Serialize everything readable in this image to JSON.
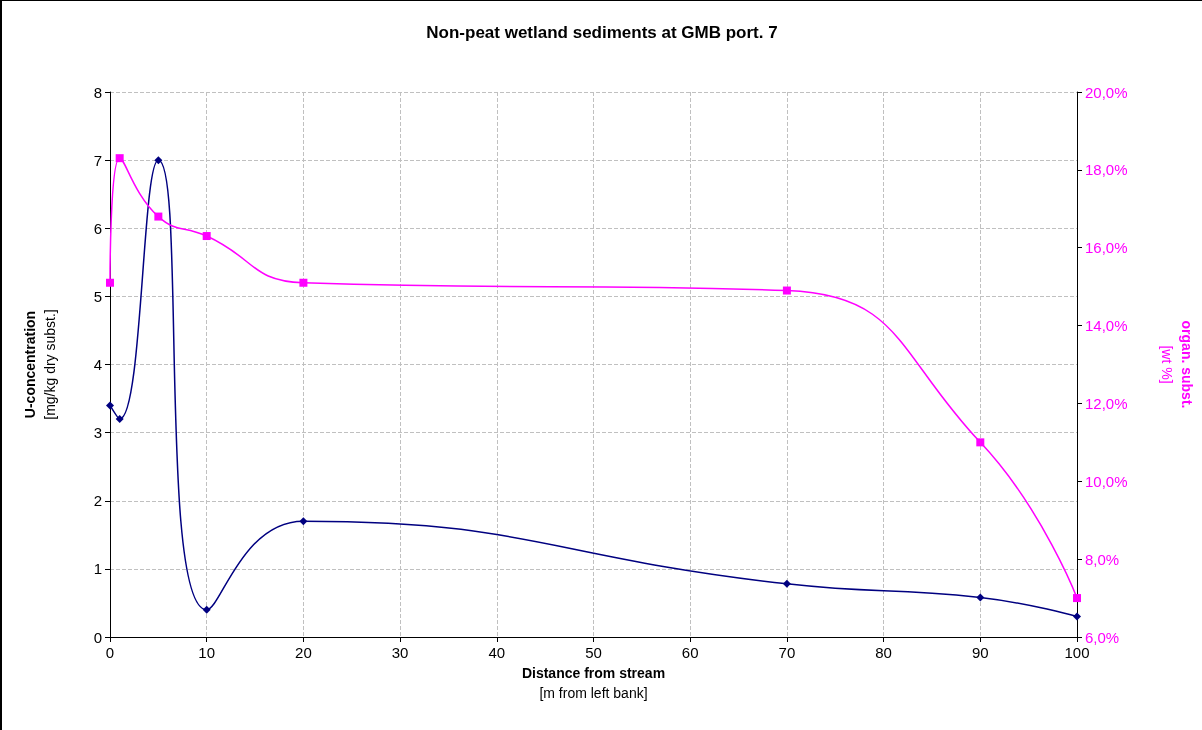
{
  "chart_data": {
    "type": "line",
    "title": "Non-peat wetland sediments at GMB port. 7",
    "xlabel": "Distance from stream\n[m from left bank]",
    "ylabel": "U-concentration\n[mg/kg dry subst.]",
    "y2label": "organ. subst.\n[wt %]",
    "x": [
      0,
      1,
      5,
      10,
      20,
      70,
      90,
      100
    ],
    "series": [
      {
        "color": "#000080",
        "marker": "diamond",
        "values": [
          3.4,
          3.2,
          7.0,
          0.4,
          1.7,
          0.78,
          0.58,
          0.3
        ]
      },
      {
        "color": "#ff00ff",
        "marker": "square",
        "axis": "y2",
        "values": [
          15.1,
          18.3,
          16.8,
          16.3,
          15.1,
          14.9,
          11.0,
          7.0
        ]
      }
    ],
    "xlim": [
      0,
      100
    ],
    "xticks": [
      0,
      10,
      20,
      30,
      40,
      50,
      60,
      70,
      80,
      90,
      100
    ],
    "ylim": [
      0,
      8
    ],
    "yticks": [
      0,
      1,
      2,
      3,
      4,
      5,
      6,
      7,
      8
    ],
    "y2lim": [
      6,
      20
    ],
    "y2ticks": [
      {
        "value": 6,
        "label": "6,0%"
      },
      {
        "value": 8,
        "label": "8,0%"
      },
      {
        "value": 10,
        "label": "10,0%"
      },
      {
        "value": 12,
        "label": "12,0%"
      },
      {
        "value": 14,
        "label": "14,0%"
      },
      {
        "value": 16,
        "label": "16,0%"
      },
      {
        "value": 18,
        "label": "18,0%"
      },
      {
        "value": 20,
        "label": "20,0%"
      }
    ],
    "grid": true,
    "line_style": "solid"
  }
}
